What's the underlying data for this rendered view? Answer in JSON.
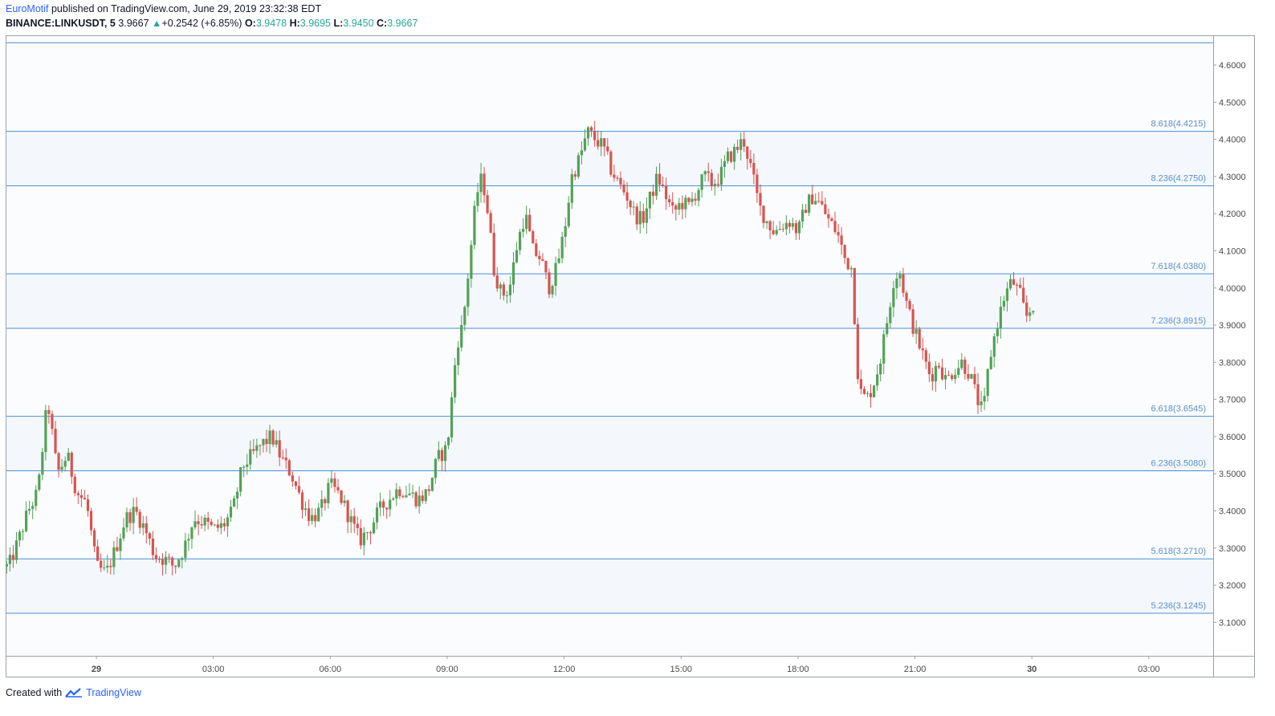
{
  "header": {
    "author": "EuroMotif",
    "published_text": "published on TradingView.com, June 29, 2019 23:32:38 EDT",
    "symbol": "BINANCE:LINKUSDT, 5",
    "last_price": "3.9667",
    "change": "+0.2542 (+6.85%)",
    "open_label": "O:",
    "open": "3.9478",
    "high_label": "H:",
    "high": "3.9695",
    "low_label": "L:",
    "low": "3.9450",
    "close_label": "C:",
    "close": "3.9667"
  },
  "footer": {
    "created_with": "Created with",
    "brand": "TradingView"
  },
  "colors": {
    "up": "#53a157",
    "down": "#d9534f",
    "fib_line": "#4a8fd1",
    "fib_label": "#5b8fc7",
    "band_fill": "#f4f8fd",
    "axis_text": "#4a4a4a"
  },
  "chart_data": {
    "type": "candlestick",
    "ylim": [
      3.01,
      4.68
    ],
    "y_ticks": [
      "3.1000",
      "3.2000",
      "3.3000",
      "3.4000",
      "3.5000",
      "3.6000",
      "3.7000",
      "3.8000",
      "3.9000",
      "4.0000",
      "4.1000",
      "4.2000",
      "4.3000",
      "4.4000",
      "4.5000",
      "4.6000"
    ],
    "x_ticks": [
      {
        "label": "29",
        "hour": 0,
        "bold": true
      },
      {
        "label": "03:00",
        "hour": 3
      },
      {
        "label": "06:00",
        "hour": 6
      },
      {
        "label": "09:00",
        "hour": 9
      },
      {
        "label": "12:00",
        "hour": 12
      },
      {
        "label": "15:00",
        "hour": 15
      },
      {
        "label": "18:00",
        "hour": 18
      },
      {
        "label": "21:00",
        "hour": 21
      },
      {
        "label": "30",
        "hour": 24,
        "bold": true
      },
      {
        "label": "03:00",
        "hour": 27
      }
    ],
    "fib_levels": [
      {
        "label": "8.618(4.4215)",
        "value": 4.4215
      },
      {
        "label": "8.236(4.2750)",
        "value": 4.275
      },
      {
        "label": "7.618(4.0380)",
        "value": 4.038
      },
      {
        "label": "7.236(3.8915)",
        "value": 3.8915
      },
      {
        "label": "6.618(3.6545)",
        "value": 3.6545
      },
      {
        "label": "6.236(3.5080)",
        "value": 3.508
      },
      {
        "label": "5.618(3.2710)",
        "value": 3.271
      },
      {
        "label": "5.236(3.1245)",
        "value": 3.1245
      }
    ],
    "bands": [
      [
        4.275,
        4.4215
      ],
      [
        3.8915,
        4.038
      ],
      [
        3.508,
        3.6545
      ],
      [
        3.1245,
        3.271
      ]
    ],
    "extra_top_level": 4.66,
    "price_anchors": [
      [
        -2.25,
        3.25
      ],
      [
        -2.0,
        3.32
      ],
      [
        -1.75,
        3.4
      ],
      [
        -1.5,
        3.45
      ],
      [
        -1.25,
        3.7
      ],
      [
        -1.0,
        3.5
      ],
      [
        -0.75,
        3.55
      ],
      [
        -0.5,
        3.45
      ],
      [
        -0.25,
        3.42
      ],
      [
        0.0,
        3.25
      ],
      [
        0.25,
        3.23
      ],
      [
        0.5,
        3.3
      ],
      [
        0.75,
        3.38
      ],
      [
        1.0,
        3.4
      ],
      [
        1.25,
        3.35
      ],
      [
        1.5,
        3.28
      ],
      [
        1.75,
        3.27
      ],
      [
        2.0,
        3.25
      ],
      [
        2.25,
        3.3
      ],
      [
        2.5,
        3.38
      ],
      [
        2.75,
        3.37
      ],
      [
        3.0,
        3.35
      ],
      [
        3.25,
        3.36
      ],
      [
        3.5,
        3.4
      ],
      [
        3.75,
        3.52
      ],
      [
        4.0,
        3.55
      ],
      [
        4.25,
        3.58
      ],
      [
        4.5,
        3.6
      ],
      [
        4.75,
        3.54
      ],
      [
        5.0,
        3.5
      ],
      [
        5.25,
        3.43
      ],
      [
        5.5,
        3.38
      ],
      [
        5.75,
        3.4
      ],
      [
        6.0,
        3.47
      ],
      [
        6.25,
        3.44
      ],
      [
        6.5,
        3.38
      ],
      [
        6.75,
        3.32
      ],
      [
        7.0,
        3.35
      ],
      [
        7.25,
        3.4
      ],
      [
        7.5,
        3.43
      ],
      [
        7.75,
        3.46
      ],
      [
        8.0,
        3.45
      ],
      [
        8.25,
        3.43
      ],
      [
        8.5,
        3.45
      ],
      [
        8.75,
        3.54
      ],
      [
        9.0,
        3.57
      ],
      [
        9.1,
        3.68
      ],
      [
        9.25,
        3.85
      ],
      [
        9.4,
        3.9
      ],
      [
        9.55,
        4.05
      ],
      [
        9.75,
        4.25
      ],
      [
        9.9,
        4.3
      ],
      [
        10.05,
        4.2
      ],
      [
        10.2,
        4.05
      ],
      [
        10.4,
        3.98
      ],
      [
        10.6,
        4.0
      ],
      [
        10.8,
        4.12
      ],
      [
        11.0,
        4.2
      ],
      [
        11.2,
        4.1
      ],
      [
        11.4,
        4.08
      ],
      [
        11.6,
        4.0
      ],
      [
        11.8,
        4.05
      ],
      [
        12.0,
        4.15
      ],
      [
        12.2,
        4.3
      ],
      [
        12.4,
        4.35
      ],
      [
        12.6,
        4.42
      ],
      [
        12.8,
        4.4
      ],
      [
        13.0,
        4.38
      ],
      [
        13.2,
        4.32
      ],
      [
        13.4,
        4.28
      ],
      [
        13.6,
        4.25
      ],
      [
        13.8,
        4.2
      ],
      [
        14.0,
        4.18
      ],
      [
        14.2,
        4.24
      ],
      [
        14.4,
        4.3
      ],
      [
        14.6,
        4.25
      ],
      [
        14.8,
        4.2
      ],
      [
        15.0,
        4.23
      ],
      [
        15.2,
        4.22
      ],
      [
        15.4,
        4.26
      ],
      [
        15.6,
        4.3
      ],
      [
        15.8,
        4.28
      ],
      [
        16.0,
        4.3
      ],
      [
        16.2,
        4.35
      ],
      [
        16.4,
        4.37
      ],
      [
        16.6,
        4.4
      ],
      [
        16.8,
        4.32
      ],
      [
        17.0,
        4.22
      ],
      [
        17.2,
        4.18
      ],
      [
        17.4,
        4.15
      ],
      [
        17.6,
        4.17
      ],
      [
        17.8,
        4.18
      ],
      [
        18.0,
        4.15
      ],
      [
        18.2,
        4.22
      ],
      [
        18.4,
        4.25
      ],
      [
        18.6,
        4.22
      ],
      [
        18.8,
        4.18
      ],
      [
        19.0,
        4.15
      ],
      [
        19.2,
        4.08
      ],
      [
        19.4,
        4.05
      ],
      [
        19.5,
        3.8
      ],
      [
        19.6,
        3.72
      ],
      [
        19.75,
        3.7
      ],
      [
        19.9,
        3.73
      ],
      [
        20.1,
        3.8
      ],
      [
        20.3,
        3.92
      ],
      [
        20.45,
        4.02
      ],
      [
        20.6,
        4.05
      ],
      [
        20.8,
        3.95
      ],
      [
        21.0,
        3.88
      ],
      [
        21.2,
        3.82
      ],
      [
        21.4,
        3.76
      ],
      [
        21.6,
        3.8
      ],
      [
        21.8,
        3.75
      ],
      [
        22.0,
        3.78
      ],
      [
        22.2,
        3.8
      ],
      [
        22.4,
        3.77
      ],
      [
        22.6,
        3.7
      ],
      [
        22.75,
        3.66
      ],
      [
        22.9,
        3.8
      ],
      [
        23.1,
        3.9
      ],
      [
        23.3,
        3.98
      ],
      [
        23.5,
        4.02
      ],
      [
        23.7,
        3.98
      ],
      [
        23.85,
        3.92
      ],
      [
        24.0,
        3.95
      ],
      [
        24.1,
        3.9667
      ]
    ]
  }
}
